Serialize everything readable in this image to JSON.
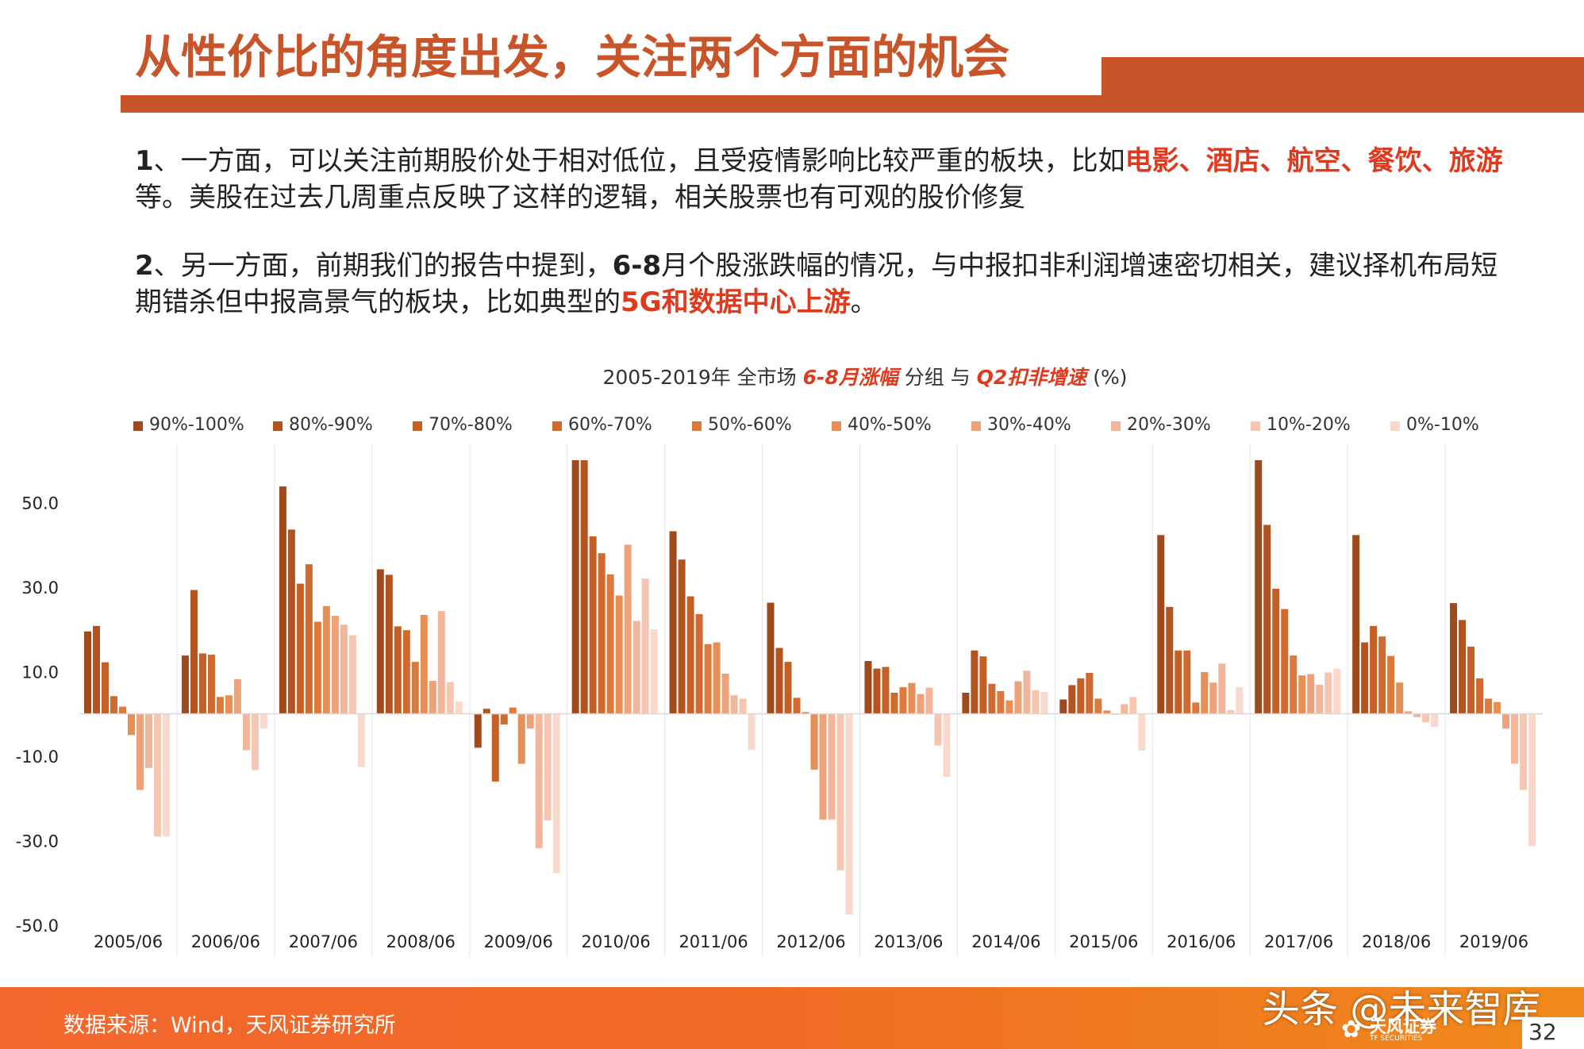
{
  "title": "从性价比的角度出发，关注两个方面的机会",
  "paragraph1": {
    "num": "1",
    "seg1": "、一方面，可以关注前期股价处于相对低位，且受疫情影响比较严重的板块，比如",
    "highlight": "电影、酒店、航空、餐饮、旅游",
    "seg2": "等。美股在过去几周重点反映了这样的逻辑，相关股票也有可观的股价修复"
  },
  "paragraph2": {
    "num": "2",
    "seg1": "、另一方面，前期我们的报告中提到，",
    "bold": "6-8",
    "seg2": "月个股涨跌幅的情况，与中报扣非利润增速密切相关，建议择机布局短期错杀但中报高景气的板块，比如典型的",
    "highlight": "5G和数据中心上游",
    "seg3": "。"
  },
  "chart_data": {
    "type": "bar",
    "title_parts": {
      "prefix": "2005-2019年 全市场 ",
      "hl1": "6-8月涨幅",
      "mid": " 分组 与 ",
      "hl2": "Q2扣非增速",
      "suffix": " (%)"
    },
    "categories": [
      "2005/06",
      "2006/06",
      "2007/06",
      "2008/06",
      "2009/06",
      "2010/06",
      "2011/06",
      "2012/06",
      "2013/06",
      "2014/06",
      "2015/06",
      "2016/06",
      "2017/06",
      "2018/06",
      "2019/06"
    ],
    "y_ticks": [
      "50.0",
      "30.0",
      "10.0",
      "-10.0",
      "-30.0",
      "-50.0"
    ],
    "y_tick_values": [
      50,
      30,
      10,
      -10,
      -30,
      -50
    ],
    "ylim": [
      -50,
      60
    ],
    "grid": false,
    "legend_position": "top",
    "series": [
      {
        "name": "90%-100%",
        "color": "#9e4a1c",
        "values": [
          19.5,
          13.8,
          53.8,
          34.2,
          -8.0,
          60.0,
          43.2,
          26.3,
          12.5,
          5.0,
          3.4,
          42.3,
          60.0,
          42.3,
          26.2
        ]
      },
      {
        "name": "80%-90%",
        "color": "#b35420",
        "values": [
          20.8,
          29.3,
          43.6,
          32.9,
          1.2,
          60.0,
          36.5,
          15.6,
          10.7,
          15.0,
          6.8,
          25.3,
          44.7,
          16.9,
          22.2
        ]
      },
      {
        "name": "70%-80%",
        "color": "#c45f26",
        "values": [
          12.2,
          14.3,
          30.8,
          20.7,
          -16.0,
          42.0,
          27.8,
          12.3,
          11.1,
          13.6,
          8.4,
          15.0,
          29.6,
          20.8,
          15.9
        ]
      },
      {
        "name": "60%-70%",
        "color": "#d06a2f",
        "values": [
          4.2,
          14.0,
          35.4,
          19.8,
          -2.5,
          38.0,
          23.6,
          3.8,
          5.0,
          7.1,
          9.7,
          15.0,
          24.8,
          18.3,
          8.4
        ]
      },
      {
        "name": "50%-60%",
        "color": "#dc7a3e",
        "values": [
          1.7,
          4.0,
          21.8,
          12.3,
          1.5,
          33.0,
          16.5,
          0.4,
          6.3,
          5.4,
          3.6,
          2.7,
          13.8,
          13.7,
          3.6
        ]
      },
      {
        "name": "40%-50%",
        "color": "#e88f55",
        "values": [
          -5.0,
          4.4,
          25.5,
          23.4,
          -11.8,
          28.0,
          16.9,
          -13.2,
          7.3,
          3.2,
          0.8,
          9.9,
          9.1,
          7.4,
          2.8
        ]
      },
      {
        "name": "30%-40%",
        "color": "#eda27a",
        "values": [
          -18.0,
          8.2,
          23.2,
          7.8,
          -3.5,
          40.0,
          9.5,
          -25.0,
          4.7,
          7.7,
          -0.2,
          7.4,
          9.4,
          0.6,
          -3.5
        ]
      },
      {
        "name": "20%-30%",
        "color": "#f2b69a",
        "values": [
          -12.8,
          -8.6,
          21.1,
          24.3,
          -31.8,
          22.0,
          4.4,
          -25.0,
          6.2,
          10.2,
          2.3,
          11.9,
          6.9,
          -0.8,
          -11.8
        ]
      },
      {
        "name": "10%-20%",
        "color": "#f6c6b0",
        "values": [
          -29.0,
          -13.3,
          18.6,
          7.5,
          -25.2,
          32.0,
          3.6,
          -37.0,
          -7.5,
          5.6,
          4.0,
          0.9,
          9.8,
          -2.0,
          -18.0
        ]
      },
      {
        "name": "0%-10%",
        "color": "#f9d9cc",
        "values": [
          -29.0,
          -3.5,
          -12.6,
          2.9,
          -37.7,
          20.0,
          -8.5,
          -47.5,
          -14.9,
          5.2,
          -8.7,
          6.3,
          10.7,
          -3.1,
          -31.3
        ]
      }
    ]
  },
  "footer": {
    "source": "数据来源：Wind，天风证券研究所",
    "watermark": "头条 @未来智库",
    "logo_cn": "天风证券",
    "logo_en": "TF SECURITIES",
    "page_number": "32"
  }
}
